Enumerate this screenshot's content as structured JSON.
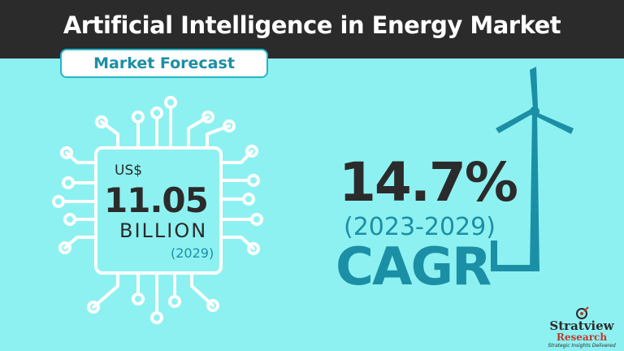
{
  "header": {
    "title": "Artificial Intelligence in Energy Market"
  },
  "badge": {
    "label": "Market Forecast"
  },
  "market_size": {
    "currency": "US$",
    "value": "11.05",
    "unit": "BILLION",
    "year": "(2029)"
  },
  "cagr": {
    "value": "14.7%",
    "period": "(2023-2029)",
    "label": "CAGR"
  },
  "brand": {
    "name": "Stratview",
    "sub": "Research",
    "tagline": "Strategic Insights Delivered"
  },
  "colors": {
    "background": "#8ef1f1",
    "header": "#2b2b2b",
    "accent": "#1b8fa5",
    "text_dark": "#2b2b2b"
  },
  "icons": [
    "circuit-chip-icon",
    "wind-turbine-icon",
    "stratview-logo-icon"
  ]
}
